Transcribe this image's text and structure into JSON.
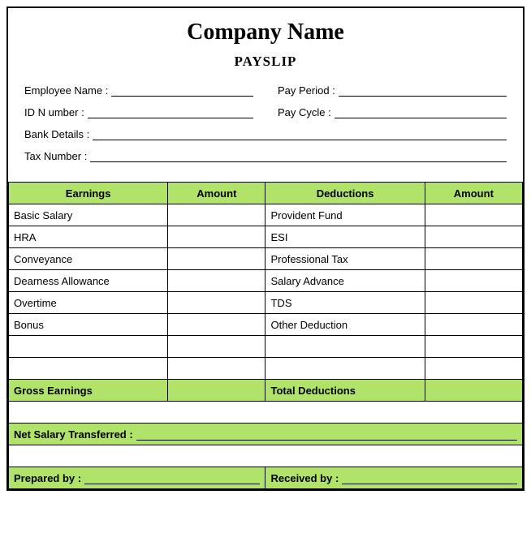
{
  "header": {
    "company_name": "Company Name",
    "subtitle": "PAYSLIP"
  },
  "info": {
    "employee_name_label": "Employee Name :",
    "pay_period_label": "Pay Period :",
    "id_number_label": "ID N umber :",
    "pay_cycle_label": "Pay Cycle :",
    "bank_details_label": "Bank Details :",
    "tax_number_label": "Tax Number :"
  },
  "table": {
    "headers": {
      "earnings": "Earnings",
      "amount1": "Amount",
      "deductions": "Deductions",
      "amount2": "Amount"
    },
    "rows": [
      {
        "earning": "Basic Salary",
        "deduction": "Provident Fund"
      },
      {
        "earning": "HRA",
        "deduction": "ESI"
      },
      {
        "earning": "Conveyance",
        "deduction": "Professional Tax"
      },
      {
        "earning": "Dearness Allowance",
        "deduction": "Salary Advance"
      },
      {
        "earning": "Overtime",
        "deduction": "TDS"
      },
      {
        "earning": "Bonus",
        "deduction": "Other Deduction"
      },
      {
        "earning": "",
        "deduction": ""
      },
      {
        "earning": "",
        "deduction": ""
      }
    ],
    "totals": {
      "gross_earnings": "Gross Earnings",
      "total_deductions": "Total Deductions"
    }
  },
  "footer": {
    "net_salary_label": "Net Salary Transferred :",
    "prepared_by_label": "Prepared by :",
    "received_by_label": "Received by :"
  },
  "style": {
    "accent_color": "#b1e26a",
    "border_color": "#000000",
    "background_color": "#ffffff"
  }
}
